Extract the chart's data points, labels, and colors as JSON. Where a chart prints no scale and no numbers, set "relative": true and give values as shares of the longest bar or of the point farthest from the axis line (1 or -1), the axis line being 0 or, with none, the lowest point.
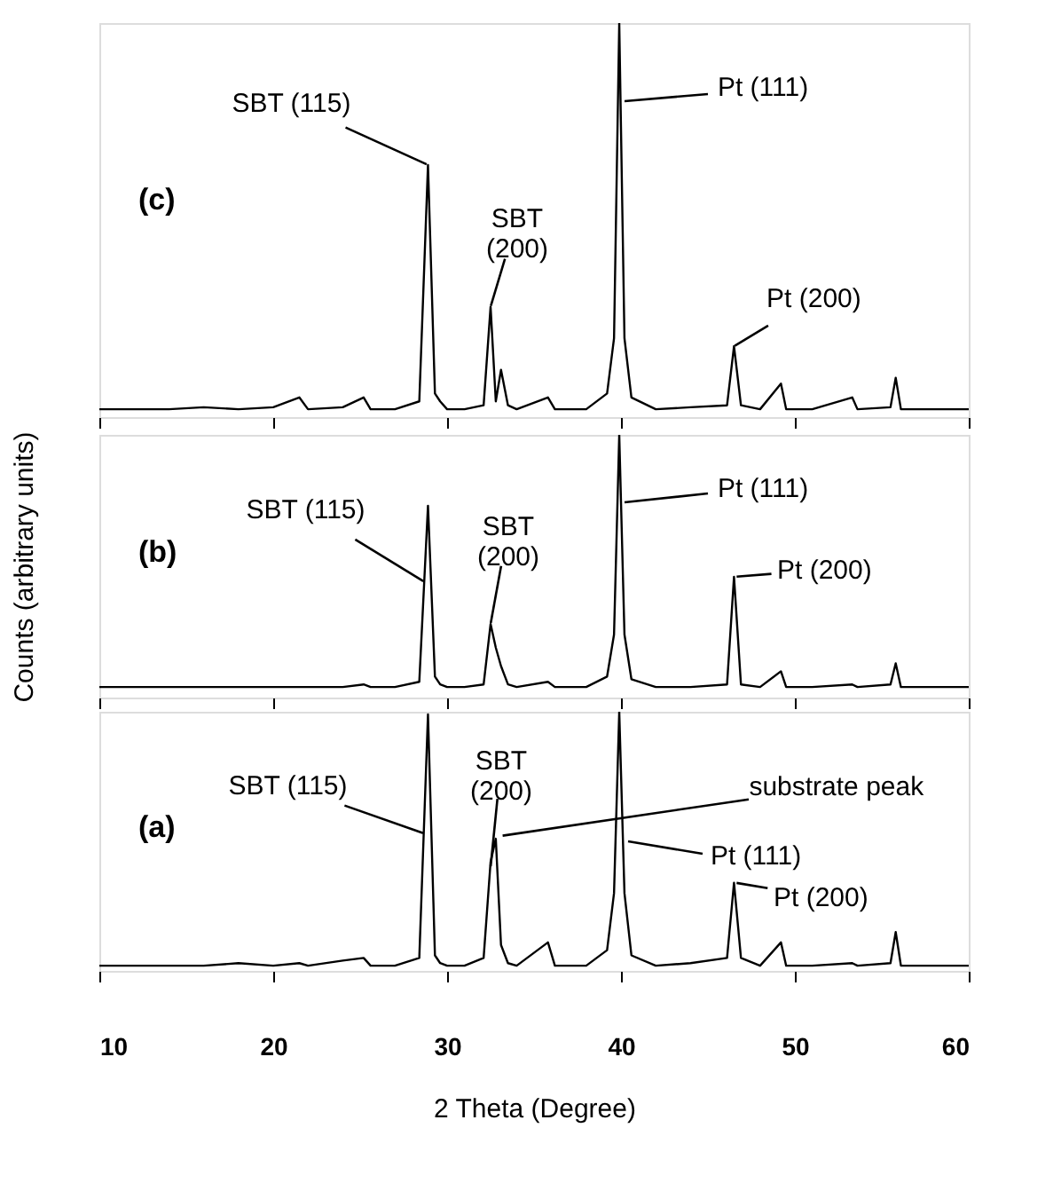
{
  "chart_data": [
    {
      "type": "line",
      "relative": true,
      "xlim": [
        10,
        60
      ],
      "xticks": [
        10,
        20,
        30,
        40,
        50,
        60
      ],
      "tick_labels": false,
      "grid": false,
      "x": [
        10,
        12,
        14,
        16,
        18,
        20,
        21.5,
        22,
        24,
        25.2,
        25.6,
        27,
        28.4,
        28.9,
        29.3,
        29.6,
        30,
        31,
        32.1,
        32.5,
        32.8,
        33.1,
        33.5,
        34,
        35.8,
        36.2,
        38,
        39.2,
        39.6,
        39.9,
        40.2,
        40.6,
        42,
        44,
        46.1,
        46.5,
        46.9,
        48,
        49.2,
        49.5,
        51,
        53.3,
        53.6,
        55.5,
        55.8,
        56.1,
        58,
        60
      ],
      "series": [
        {
          "color": "#000000",
          "values": [
            0.02,
            0.02,
            0.02,
            0.025,
            0.02,
            0.025,
            0.05,
            0.02,
            0.025,
            0.05,
            0.02,
            0.02,
            0.04,
            0.64,
            0.06,
            0.04,
            0.02,
            0.02,
            0.03,
            0.28,
            0.04,
            0.12,
            0.03,
            0.02,
            0.05,
            0.02,
            0.02,
            0.06,
            0.2,
            1,
            0.2,
            0.05,
            0.02,
            0.025,
            0.03,
            0.18,
            0.03,
            0.02,
            0.085,
            0.02,
            0.02,
            0.05,
            0.02,
            0.025,
            0.1,
            0.02,
            0.02,
            0.02
          ]
        }
      ],
      "annotations": [
        "(c)",
        {
          "text": "SBT (115)",
          "x": 28.9,
          "y": 0.64
        },
        {
          "text": "SBT\n(200)",
          "x": 32.5,
          "y": 0.28
        },
        "Pt (111)",
        {
          "text": "Pt (200)",
          "x": 46.5,
          "y": 0.18
        }
      ]
    },
    {
      "type": "line",
      "relative": true,
      "xlim": [
        10,
        60
      ],
      "xticks": [
        10,
        20,
        30,
        40,
        50,
        60
      ],
      "tick_labels": false,
      "grid": false,
      "ylabel": "Counts (arbitrary units)",
      "x": [
        10,
        12,
        14,
        16,
        18,
        20,
        21.5,
        22,
        24,
        25.2,
        25.6,
        27,
        28.4,
        28.9,
        29.3,
        29.6,
        30,
        31,
        32.1,
        32.5,
        32.8,
        33.1,
        33.5,
        34,
        35.8,
        36.2,
        38,
        39.2,
        39.6,
        39.9,
        40.2,
        40.6,
        42,
        44,
        46.1,
        46.5,
        46.9,
        48,
        49.2,
        49.5,
        51,
        53.3,
        53.6,
        55.5,
        55.8,
        56.1,
        58,
        60
      ],
      "series": [
        {
          "color": "#000000",
          "values": [
            0.04,
            0.04,
            0.04,
            0.04,
            0.04,
            0.04,
            0.04,
            0.04,
            0.04,
            0.05,
            0.04,
            0.04,
            0.06,
            0.73,
            0.08,
            0.05,
            0.04,
            0.04,
            0.05,
            0.28,
            0.19,
            0.12,
            0.05,
            0.04,
            0.06,
            0.04,
            0.04,
            0.08,
            0.24,
            1,
            0.24,
            0.07,
            0.04,
            0.04,
            0.05,
            0.46,
            0.05,
            0.04,
            0.1,
            0.04,
            0.04,
            0.05,
            0.04,
            0.05,
            0.13,
            0.04,
            0.04,
            0.04
          ]
        }
      ],
      "annotations": [
        "(b)",
        {
          "text": "SBT (115)",
          "x": 28.7,
          "y": 0.44
        },
        {
          "text": "SBT\n(200)",
          "x": 32.5,
          "y": 0.28
        },
        "Pt (111)",
        {
          "text": "Pt (200)",
          "x": 46.6,
          "y": 0.46
        }
      ]
    },
    {
      "type": "line",
      "relative": true,
      "xlim": [
        10,
        60
      ],
      "xticks": [
        10,
        20,
        30,
        40,
        50,
        60
      ],
      "tick_labels": "x",
      "grid": false,
      "xlabel": "2 Theta (Degree)",
      "x": [
        10,
        12,
        14,
        16,
        18,
        20,
        21.5,
        22,
        24,
        25.2,
        25.6,
        27,
        28.4,
        28.9,
        29.3,
        29.6,
        30,
        31,
        32.1,
        32.5,
        32.8,
        33.1,
        33.5,
        34,
        35.8,
        36.2,
        38,
        39.2,
        39.6,
        39.9,
        40.2,
        40.6,
        42,
        44,
        46.1,
        46.5,
        46.9,
        48,
        49.2,
        49.5,
        51,
        53.3,
        53.6,
        55.5,
        55.8,
        56.1,
        58,
        60
      ],
      "series": [
        {
          "color": "#000000",
          "values": [
            0.02,
            0.02,
            0.02,
            0.02,
            0.03,
            0.02,
            0.03,
            0.02,
            0.04,
            0.05,
            0.02,
            0.02,
            0.05,
            0.99,
            0.06,
            0.03,
            0.02,
            0.02,
            0.05,
            0.42,
            0.51,
            0.1,
            0.03,
            0.02,
            0.11,
            0.02,
            0.02,
            0.08,
            0.3,
            1,
            0.3,
            0.06,
            0.02,
            0.03,
            0.05,
            0.34,
            0.05,
            0.02,
            0.11,
            0.02,
            0.02,
            0.03,
            0.02,
            0.03,
            0.15,
            0.02,
            0.02,
            0.02
          ]
        }
      ],
      "annotations": [
        "(a)",
        {
          "text": "SBT (115)",
          "x": 28.7,
          "y": 0.53
        },
        {
          "text": "SBT\n(200)",
          "x": 32.5,
          "y": 0.4
        },
        {
          "text": "substrate peak",
          "x": 33.0,
          "y": 0.52
        },
        "Pt (111)",
        {
          "text": "Pt (200)",
          "x": 46.6,
          "y": 0.34
        }
      ]
    }
  ]
}
